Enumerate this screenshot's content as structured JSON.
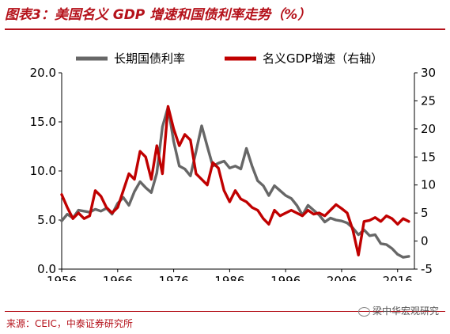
{
  "header": {
    "title": "图表3：美国名义 GDP 增速和国债利率走势（%）"
  },
  "footer": {
    "source": "来源：CEIC，中泰证券研究所",
    "watermark": "梁中华宏观研究"
  },
  "colors": {
    "accent": "#b5121b",
    "yield_line": "#676767",
    "gdp_line": "#c00000"
  },
  "icons": {
    "watermark": "wechat-icon"
  },
  "chart_data": {
    "type": "line",
    "title": "",
    "xlabel": "",
    "ylabel": "",
    "x_ticks": [
      "1956",
      "1966",
      "1976",
      "1986",
      "1996",
      "2006",
      "2016"
    ],
    "xlim": [
      1956,
      2019
    ],
    "y_left": {
      "lim": [
        0,
        20
      ],
      "ticks": [
        "0.0",
        "5.0",
        "10.0",
        "15.0",
        "20.0"
      ]
    },
    "y_right": {
      "lim": [
        -5,
        30
      ],
      "ticks": [
        "-5",
        "0",
        "5",
        "10",
        "15",
        "20",
        "25",
        "30"
      ]
    },
    "legend": {
      "position": "top"
    },
    "grid": false,
    "series": [
      {
        "name": "长期国债利率",
        "axis": "left",
        "x": [
          1956,
          1957,
          1958,
          1959,
          1960,
          1961,
          1962,
          1963,
          1964,
          1965,
          1966,
          1967,
          1968,
          1969,
          1970,
          1971,
          1972,
          1973,
          1974,
          1975,
          1976,
          1977,
          1978,
          1979,
          1980,
          1981,
          1982,
          1983,
          1984,
          1985,
          1986,
          1987,
          1988,
          1989,
          1990,
          1991,
          1992,
          1993,
          1994,
          1995,
          1996,
          1997,
          1998,
          1999,
          2000,
          2001,
          2002,
          2003,
          2004,
          2005,
          2006,
          2007,
          2008,
          2009,
          2010,
          2011,
          2012,
          2013,
          2014,
          2015,
          2016,
          2017,
          2018
        ],
        "y": [
          4.9,
          5.6,
          5.2,
          6.0,
          5.9,
          5.8,
          6.1,
          5.9,
          6.2,
          5.6,
          6.7,
          7.3,
          6.5,
          7.9,
          8.9,
          8.3,
          7.8,
          9.8,
          14.5,
          16.5,
          13.0,
          10.5,
          10.2,
          9.5,
          12.0,
          14.6,
          12.5,
          10.5,
          10.8,
          11.0,
          10.3,
          10.5,
          10.2,
          12.3,
          10.5,
          9.0,
          8.5,
          7.5,
          8.5,
          8.0,
          7.5,
          7.2,
          6.5,
          5.5,
          6.5,
          6.0,
          5.5,
          4.8,
          5.2,
          5.0,
          4.9,
          4.7,
          4.2,
          3.5,
          4.0,
          3.4,
          3.5,
          2.6,
          2.5,
          2.1,
          1.5,
          1.2,
          1.3
        ]
      },
      {
        "name": "名义GDP增速（右轴）",
        "axis": "right",
        "x": [
          1956,
          1957,
          1958,
          1959,
          1960,
          1961,
          1962,
          1963,
          1964,
          1965,
          1966,
          1967,
          1968,
          1969,
          1970,
          1971,
          1972,
          1973,
          1974,
          1975,
          1976,
          1977,
          1978,
          1979,
          1980,
          1981,
          1982,
          1983,
          1984,
          1985,
          1986,
          1987,
          1988,
          1989,
          1990,
          1991,
          1992,
          1993,
          1994,
          1995,
          1996,
          1997,
          1998,
          1999,
          2000,
          2001,
          2002,
          2003,
          2004,
          2005,
          2006,
          2007,
          2008,
          2009,
          2010,
          2011,
          2012,
          2013,
          2014,
          2015,
          2016,
          2017,
          2018
        ],
        "y": [
          8.3,
          6.0,
          4.0,
          5.0,
          4.0,
          4.5,
          9.0,
          8.0,
          6.0,
          5.0,
          6.0,
          9.0,
          12.0,
          11.0,
          16.0,
          15.0,
          11.0,
          17.0,
          12.0,
          24.0,
          20.0,
          17.0,
          19.0,
          18.0,
          12.0,
          11.0,
          10.0,
          14.0,
          13.0,
          9.0,
          7.0,
          9.0,
          7.5,
          7.0,
          6.0,
          5.5,
          4.0,
          3.0,
          5.5,
          4.5,
          5.0,
          5.5,
          5.0,
          4.5,
          5.5,
          4.8,
          5.0,
          4.5,
          5.5,
          6.5,
          5.8,
          5.0,
          2.0,
          -2.5,
          3.5,
          3.7,
          4.2,
          3.5,
          4.5,
          4.0,
          3.0,
          4.0,
          3.5
        ]
      }
    ]
  }
}
